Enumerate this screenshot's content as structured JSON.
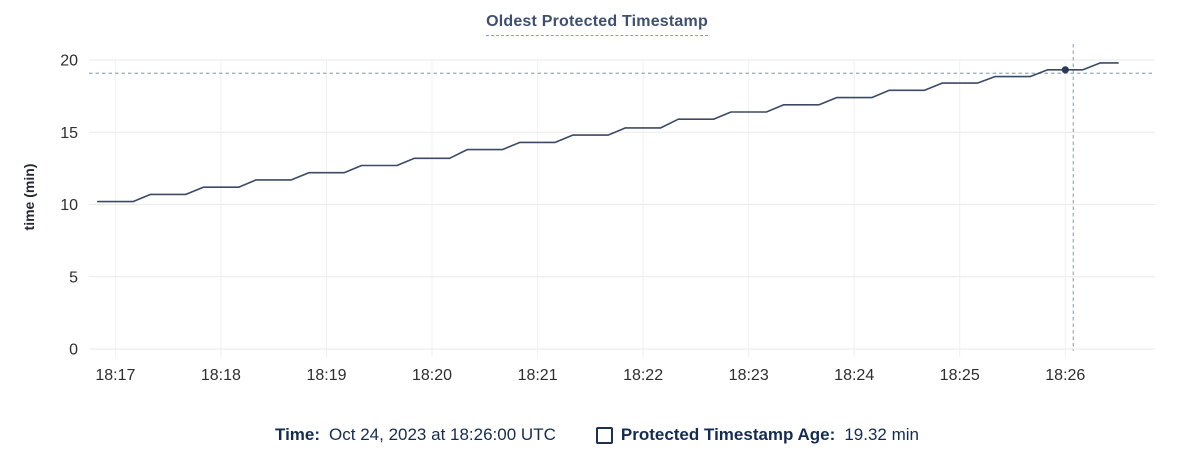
{
  "chart_data": {
    "type": "line",
    "title": "Oldest Protected Timestamp",
    "xlabel": "",
    "ylabel": "time (min)",
    "x_time_base": "minutes after 18:16:00 UTC, Oct 24 2023",
    "xlim": [
      0.75,
      10.85
    ],
    "ylim": [
      0,
      20
    ],
    "yticks": [
      0,
      5,
      10,
      15,
      20
    ],
    "xticks": [
      {
        "t": 1,
        "label": "18:17"
      },
      {
        "t": 2,
        "label": "18:18"
      },
      {
        "t": 3,
        "label": "18:19"
      },
      {
        "t": 4,
        "label": "18:20"
      },
      {
        "t": 5,
        "label": "18:21"
      },
      {
        "t": 6,
        "label": "18:22"
      },
      {
        "t": 7,
        "label": "18:23"
      },
      {
        "t": 8,
        "label": "18:24"
      },
      {
        "t": 9,
        "label": "18:25"
      },
      {
        "t": 10,
        "label": "18:26"
      }
    ],
    "grid": true,
    "legend_position": "bottom",
    "series": [
      {
        "name": "Protected Timestamp Age",
        "unit": "min",
        "color": "#3b4a66",
        "points": [
          [
            0.833,
            10.2
          ],
          [
            1,
            10.2
          ],
          [
            1.167,
            10.2
          ],
          [
            1.333,
            10.7
          ],
          [
            1.5,
            10.7
          ],
          [
            1.667,
            10.7
          ],
          [
            1.833,
            11.2
          ],
          [
            2,
            11.2
          ],
          [
            2.167,
            11.2
          ],
          [
            2.333,
            11.7
          ],
          [
            2.5,
            11.7
          ],
          [
            2.667,
            11.7
          ],
          [
            2.833,
            12.2
          ],
          [
            3,
            12.2
          ],
          [
            3.167,
            12.2
          ],
          [
            3.333,
            12.7
          ],
          [
            3.5,
            12.7
          ],
          [
            3.667,
            12.7
          ],
          [
            3.833,
            13.2
          ],
          [
            4,
            13.2
          ],
          [
            4.167,
            13.2
          ],
          [
            4.333,
            13.8
          ],
          [
            4.5,
            13.8
          ],
          [
            4.667,
            13.8
          ],
          [
            4.833,
            14.3
          ],
          [
            5,
            14.3
          ],
          [
            5.167,
            14.3
          ],
          [
            5.333,
            14.8
          ],
          [
            5.5,
            14.8
          ],
          [
            5.667,
            14.8
          ],
          [
            5.833,
            15.3
          ],
          [
            6,
            15.3
          ],
          [
            6.167,
            15.3
          ],
          [
            6.333,
            15.9
          ],
          [
            6.5,
            15.9
          ],
          [
            6.667,
            15.9
          ],
          [
            6.833,
            16.4
          ],
          [
            7,
            16.4
          ],
          [
            7.167,
            16.4
          ],
          [
            7.333,
            16.9
          ],
          [
            7.5,
            16.9
          ],
          [
            7.667,
            16.9
          ],
          [
            7.833,
            17.4
          ],
          [
            8,
            17.4
          ],
          [
            8.167,
            17.4
          ],
          [
            8.333,
            17.9
          ],
          [
            8.5,
            17.9
          ],
          [
            8.667,
            17.9
          ],
          [
            8.833,
            18.4
          ],
          [
            9,
            18.4
          ],
          [
            9.167,
            18.4
          ],
          [
            9.333,
            18.85
          ],
          [
            9.5,
            18.85
          ],
          [
            9.667,
            18.85
          ],
          [
            9.833,
            19.32
          ],
          [
            10,
            19.32
          ],
          [
            10.167,
            19.32
          ],
          [
            10.333,
            19.8
          ],
          [
            10.5,
            19.8
          ]
        ]
      }
    ],
    "highlight_point": {
      "t": 10,
      "value": 19.32,
      "time": "18:26:00 UTC",
      "value_label": "19.32 min"
    },
    "hover_readout": {
      "time_label": "Time:",
      "time_value": "Oct 24, 2023 at 18:26:00 UTC",
      "series_label": "Protected Timestamp Age:",
      "series_value": "19.32 min"
    },
    "colors": {
      "line": "#3b4a66",
      "dot": "#2c3a57",
      "gridline_h": "#e9e9e9",
      "gridline_v": "#f0f0f0",
      "crosshair": "#9fb3c4",
      "title": "#3e4f70",
      "legend_text": "#152c52",
      "tick_text": "#2e2e2e"
    }
  }
}
